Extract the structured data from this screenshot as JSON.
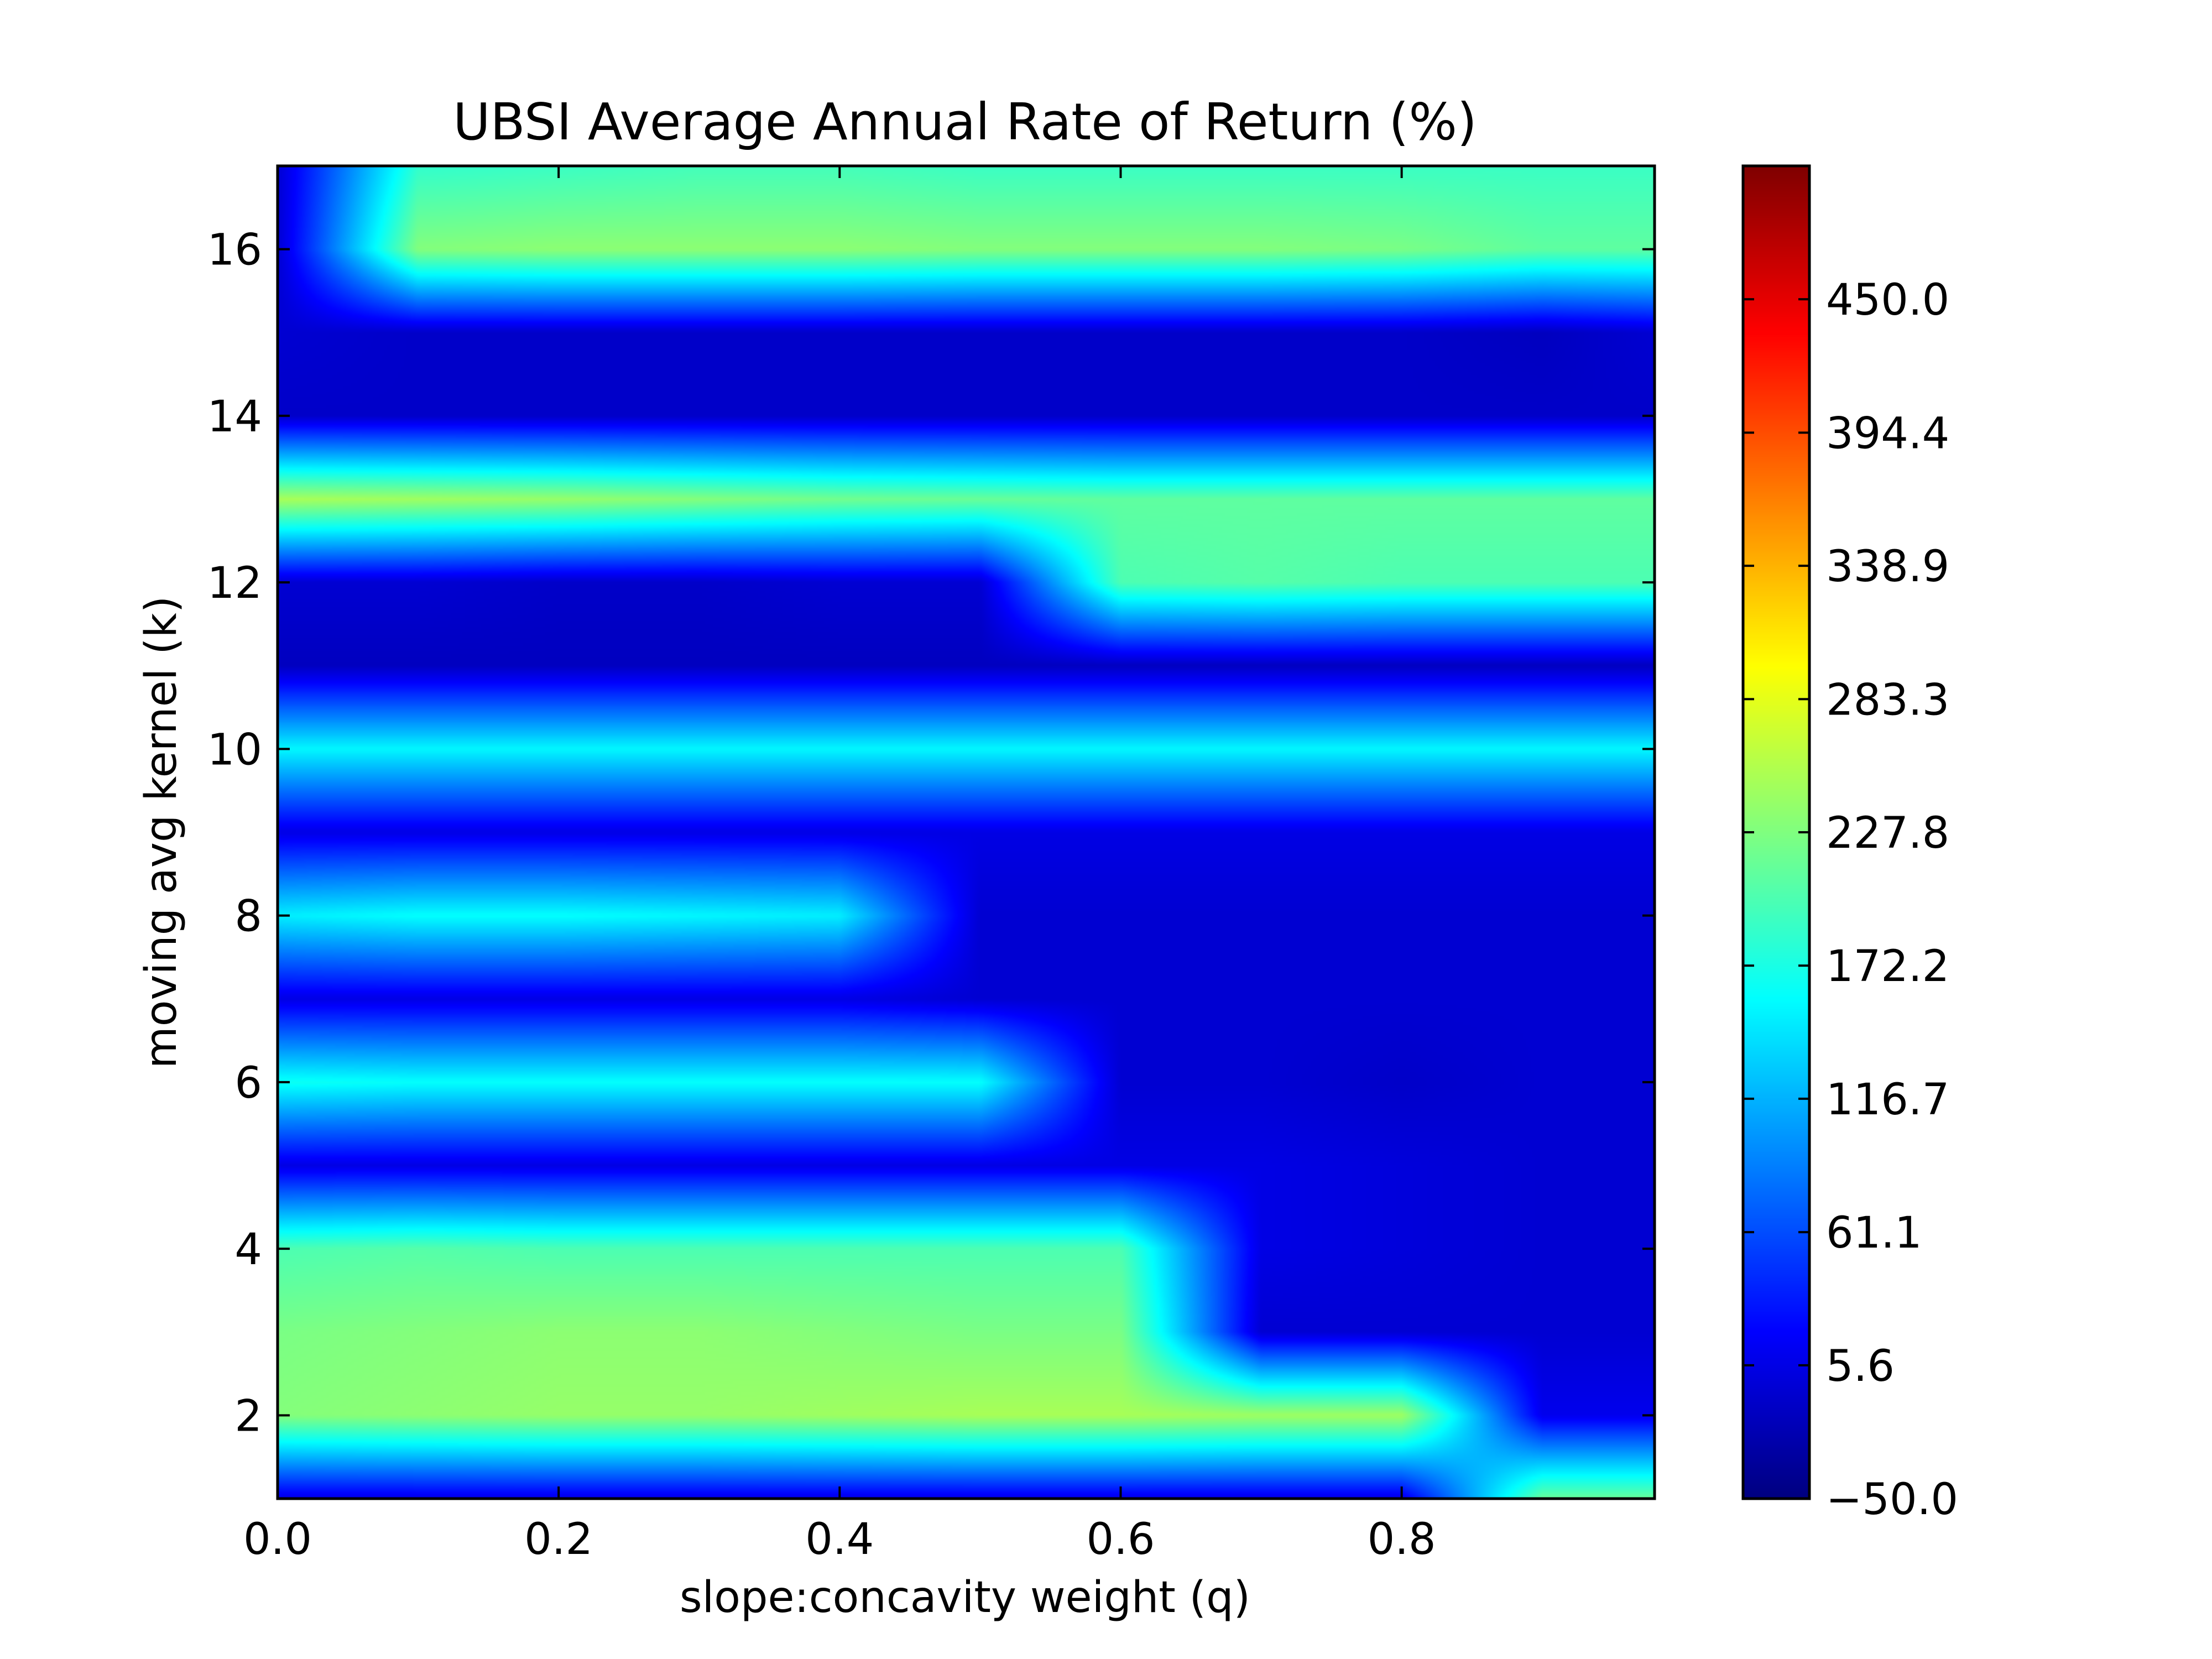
{
  "chart_data": {
    "type": "heatmap",
    "title": "UBSI Average Annual Rate of Return (%)",
    "xlabel": "slope:concavity weight (q)",
    "ylabel": "moving avg kernel (k)",
    "xlim": [
      0.0,
      0.98
    ],
    "ylim": [
      1,
      17
    ],
    "x_ticks": [
      "0.0",
      "0.2",
      "0.4",
      "0.6",
      "0.8"
    ],
    "y_ticks": [
      "2",
      "4",
      "6",
      "8",
      "10",
      "12",
      "14",
      "16"
    ],
    "colorbar": {
      "colormap": "jet",
      "range": [
        -50.0,
        505.6
      ],
      "ticks": [
        "−50.0",
        "5.6",
        "61.1",
        "116.7",
        "172.2",
        "227.8",
        "283.3",
        "338.9",
        "394.4",
        "450.0"
      ]
    },
    "q": [
      0.0,
      0.1,
      0.2,
      0.3,
      0.4,
      0.5,
      0.6,
      0.7,
      0.8,
      0.9,
      0.98
    ],
    "k": [
      1,
      2,
      3,
      4,
      5,
      6,
      7,
      8,
      9,
      10,
      11,
      12,
      13,
      14,
      15,
      16,
      17
    ],
    "z": [
      [
        5,
        5,
        5,
        5,
        5,
        5,
        5,
        5,
        5,
        215,
        215
      ],
      [
        230,
        235,
        240,
        240,
        245,
        250,
        250,
        245,
        245,
        10,
        10
      ],
      [
        225,
        230,
        235,
        235,
        230,
        225,
        225,
        -5,
        -5,
        -5,
        -5
      ],
      [
        200,
        205,
        200,
        200,
        200,
        200,
        200,
        5,
        0,
        -5,
        -5
      ],
      [
        5,
        5,
        5,
        5,
        5,
        5,
        5,
        5,
        0,
        -5,
        -5
      ],
      [
        165,
        160,
        160,
        160,
        160,
        160,
        -5,
        -5,
        -10,
        -5,
        -5
      ],
      [
        5,
        5,
        5,
        5,
        5,
        -5,
        -5,
        -5,
        -5,
        -5,
        -5
      ],
      [
        150,
        160,
        160,
        155,
        150,
        -5,
        -5,
        -5,
        -5,
        -5,
        -5
      ],
      [
        5,
        5,
        5,
        5,
        5,
        5,
        5,
        5,
        5,
        5,
        5
      ],
      [
        155,
        155,
        155,
        155,
        155,
        155,
        155,
        155,
        155,
        155,
        155
      ],
      [
        -15,
        -15,
        -15,
        -15,
        -15,
        -15,
        -15,
        -15,
        -15,
        -15,
        -15
      ],
      [
        -5,
        -5,
        -10,
        -10,
        -5,
        -5,
        200,
        205,
        200,
        200,
        200
      ],
      [
        250,
        245,
        240,
        230,
        220,
        215,
        210,
        210,
        210,
        210,
        210
      ],
      [
        -10,
        -10,
        -10,
        -10,
        -10,
        -10,
        -10,
        -10,
        -10,
        -10,
        -10
      ],
      [
        -5,
        -10,
        -10,
        -10,
        -10,
        -10,
        -10,
        -10,
        -10,
        -15,
        -5
      ],
      [
        -5,
        230,
        235,
        235,
        235,
        230,
        230,
        230,
        225,
        210,
        210
      ],
      [
        -5,
        185,
        190,
        195,
        195,
        190,
        190,
        190,
        190,
        190,
        190
      ]
    ]
  }
}
